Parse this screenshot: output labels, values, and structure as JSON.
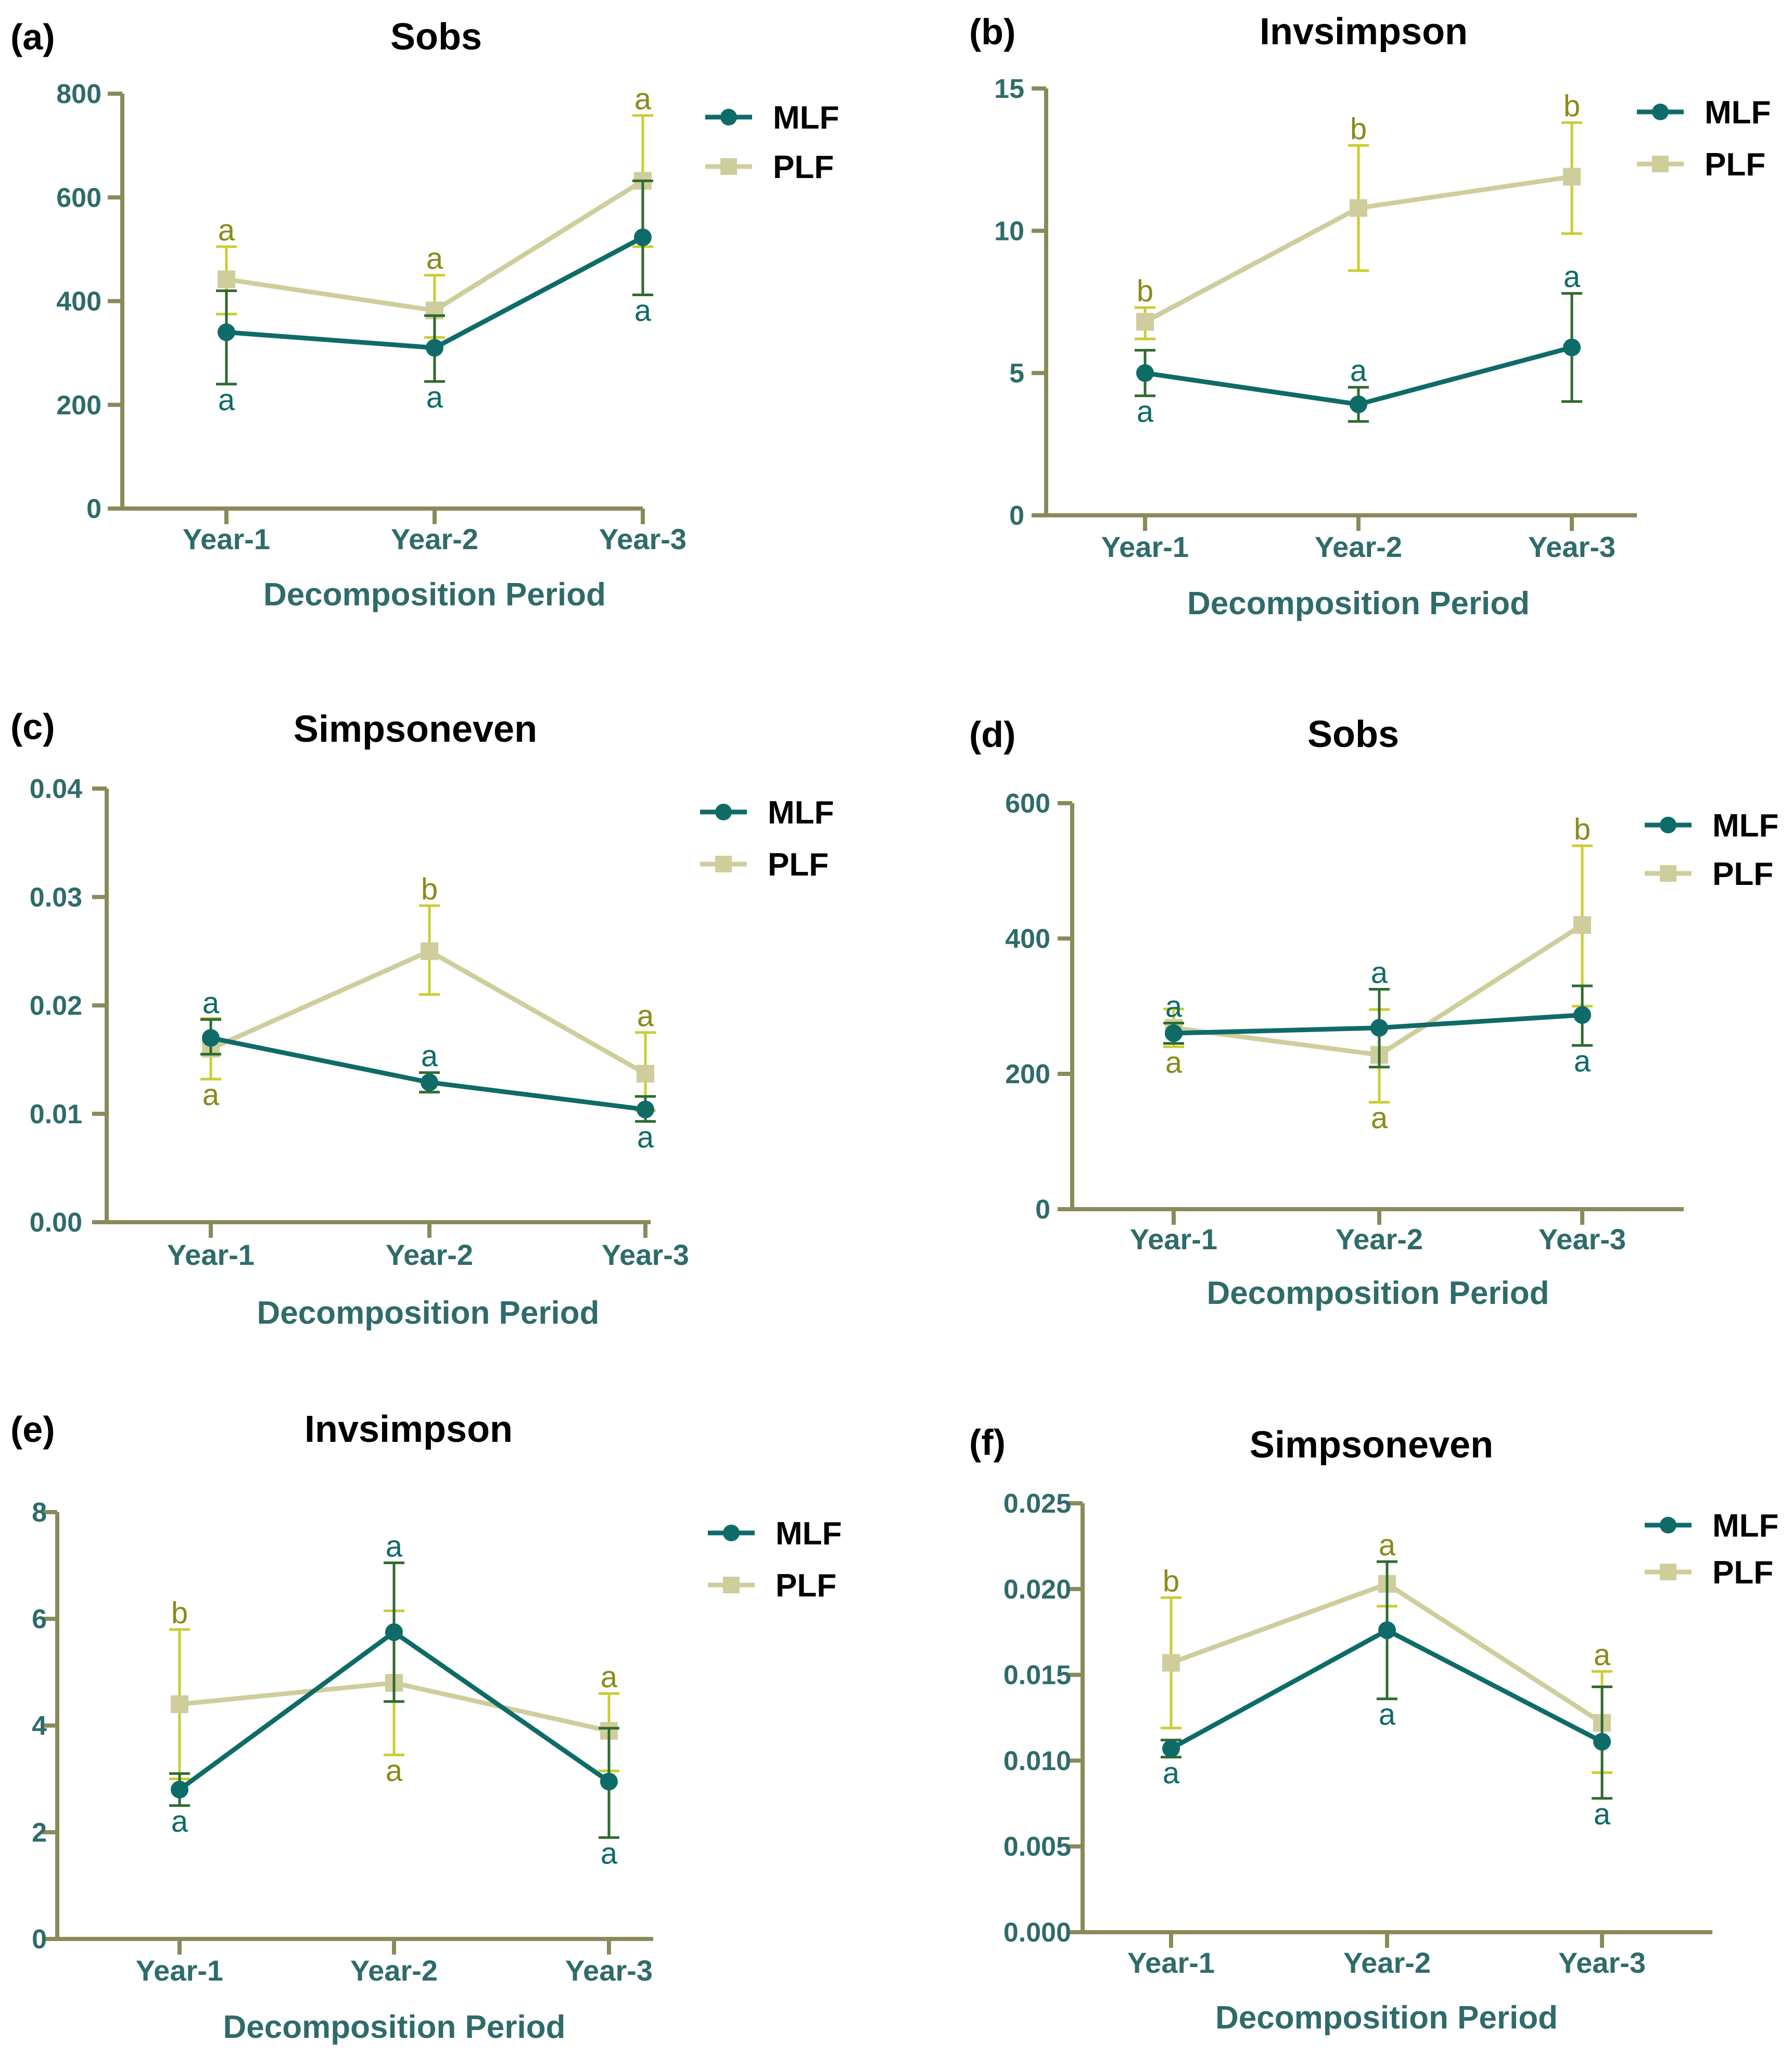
{
  "colors": {
    "axis": "#8a8a5a",
    "axis_text": "#2f6b6b",
    "mlf": "#0e6b68",
    "mlf_err": "#2f6a2f",
    "plf": "#cfcd9c",
    "plf_err": "#cccc33",
    "plf_letter": "#8a8a1a"
  },
  "chart_data": [
    {
      "panel": "(a)",
      "title": "Sobs",
      "type": "line",
      "xlabel": "Decomposition Period",
      "ylabel": "",
      "categories": [
        "Year-1",
        "Year-2",
        "Year-3"
      ],
      "ylim": [
        0,
        800
      ],
      "yticks": [
        0,
        200,
        400,
        600,
        800
      ],
      "legend": [
        "MLF",
        "PLF"
      ],
      "series": [
        {
          "name": "MLF",
          "values": [
            340,
            310,
            523
          ],
          "err_low": [
            240,
            245,
            412
          ],
          "err_high": [
            420,
            372,
            632
          ],
          "letters": [
            "a",
            "a",
            "a"
          ],
          "letter_pos": [
            "below",
            "below",
            "below"
          ]
        },
        {
          "name": "PLF",
          "values": [
            442,
            382,
            632
          ],
          "err_low": [
            375,
            330,
            505
          ],
          "err_high": [
            505,
            450,
            758
          ],
          "letters": [
            "a",
            "a",
            "a"
          ],
          "letter_pos": [
            "above",
            "above",
            "above"
          ]
        }
      ]
    },
    {
      "panel": "(b)",
      "title": "Invsimpson",
      "type": "line",
      "xlabel": "Decomposition Period",
      "ylabel": "",
      "categories": [
        "Year-1",
        "Year-2",
        "Year-3"
      ],
      "ylim": [
        0,
        15
      ],
      "yticks": [
        0,
        5,
        10,
        15
      ],
      "legend": [
        "MLF",
        "PLF"
      ],
      "series": [
        {
          "name": "MLF",
          "values": [
            5.0,
            3.9,
            5.9
          ],
          "err_low": [
            4.2,
            3.3,
            4.0
          ],
          "err_high": [
            5.8,
            4.5,
            7.8
          ],
          "letters": [
            "a",
            "a",
            "a"
          ],
          "letter_pos": [
            "below",
            "above",
            "above"
          ]
        },
        {
          "name": "PLF",
          "values": [
            6.8,
            10.8,
            11.9
          ],
          "err_low": [
            6.2,
            8.6,
            9.9
          ],
          "err_high": [
            7.3,
            13.0,
            13.8
          ],
          "letters": [
            "b",
            "b",
            "b"
          ],
          "letter_pos": [
            "above",
            "above",
            "above"
          ]
        }
      ]
    },
    {
      "panel": "(c)",
      "title": "Simpsoneven",
      "type": "line",
      "xlabel": "Decomposition Period",
      "ylabel": "",
      "categories": [
        "Year-1",
        "Year-2",
        "Year-3"
      ],
      "ylim": [
        0,
        0.04
      ],
      "yticks": [
        0,
        0.01,
        0.02,
        0.03,
        0.04
      ],
      "tick_labels": [
        "0.00",
        "0.01",
        "0.02",
        "0.03",
        "0.04"
      ],
      "legend": [
        "MLF",
        "PLF"
      ],
      "series": [
        {
          "name": "MLF",
          "values": [
            0.017,
            0.0129,
            0.0104
          ],
          "err_low": [
            0.0155,
            0.012,
            0.0093
          ],
          "err_high": [
            0.0187,
            0.0138,
            0.0116
          ],
          "letters": [
            "a",
            "a",
            "a"
          ],
          "letter_pos": [
            "above",
            "above",
            "below"
          ]
        },
        {
          "name": "PLF",
          "values": [
            0.016,
            0.025,
            0.0137
          ],
          "err_low": [
            0.0132,
            0.021,
            0.0103
          ],
          "err_high": [
            0.0188,
            0.0292,
            0.0175
          ],
          "letters": [
            "a",
            "b",
            "a"
          ],
          "letter_pos": [
            "below",
            "above",
            "above"
          ]
        }
      ]
    },
    {
      "panel": "(d)",
      "title": "Sobs",
      "type": "line",
      "xlabel": "Decomposition Period",
      "ylabel": "",
      "categories": [
        "Year-1",
        "Year-2",
        "Year-3"
      ],
      "ylim": [
        0,
        600
      ],
      "yticks": [
        0,
        200,
        400,
        600
      ],
      "legend": [
        "MLF",
        "PLF"
      ],
      "series": [
        {
          "name": "MLF",
          "values": [
            260,
            268,
            287
          ],
          "err_low": [
            245,
            210,
            242
          ],
          "err_high": [
            275,
            325,
            330
          ],
          "letters": [
            "a",
            "a",
            "a"
          ],
          "letter_pos": [
            "above",
            "above",
            "below"
          ]
        },
        {
          "name": "PLF",
          "values": [
            268,
            228,
            420
          ],
          "err_low": [
            240,
            158,
            300
          ],
          "err_high": [
            296,
            295,
            537
          ],
          "letters": [
            "a",
            "a",
            "b"
          ],
          "letter_pos": [
            "below",
            "below",
            "above"
          ]
        }
      ]
    },
    {
      "panel": "(e)",
      "title": "Invsimpson",
      "type": "line",
      "xlabel": "Decomposition Period",
      "ylabel": "",
      "categories": [
        "Year-1",
        "Year-2",
        "Year-3"
      ],
      "ylim": [
        0,
        8
      ],
      "yticks": [
        0,
        2,
        4,
        6,
        8
      ],
      "legend": [
        "MLF",
        "PLF"
      ],
      "series": [
        {
          "name": "MLF",
          "values": [
            2.8,
            5.75,
            2.95
          ],
          "err_low": [
            2.5,
            4.45,
            1.9
          ],
          "err_high": [
            3.1,
            7.05,
            3.95
          ],
          "letters": [
            "a",
            "a",
            "a"
          ],
          "letter_pos": [
            "below",
            "above",
            "below"
          ]
        },
        {
          "name": "PLF",
          "values": [
            4.4,
            4.8,
            3.9
          ],
          "err_low": [
            3.0,
            3.45,
            3.15
          ],
          "err_high": [
            5.8,
            6.15,
            4.6
          ],
          "letters": [
            "b",
            "a",
            "a"
          ],
          "letter_pos": [
            "above",
            "below",
            "above"
          ]
        }
      ]
    },
    {
      "panel": "(f)",
      "title": "Simpsoneven",
      "type": "line",
      "xlabel": "Decomposition Period",
      "ylabel": "",
      "categories": [
        "Year-1",
        "Year-2",
        "Year-3"
      ],
      "ylim": [
        0,
        0.025
      ],
      "yticks": [
        0,
        0.005,
        0.01,
        0.015,
        0.02,
        0.025
      ],
      "tick_labels": [
        "0.000",
        "0.005",
        "0.010",
        "0.015",
        "0.020",
        "0.025"
      ],
      "legend": [
        "MLF",
        "PLF"
      ],
      "series": [
        {
          "name": "MLF",
          "values": [
            0.0107,
            0.0176,
            0.0111
          ],
          "err_low": [
            0.0102,
            0.0136,
            0.0078
          ],
          "err_high": [
            0.0112,
            0.0216,
            0.0143
          ],
          "letters": [
            "a",
            "a",
            "a"
          ],
          "letter_pos": [
            "below",
            "below",
            "below"
          ]
        },
        {
          "name": "PLF",
          "values": [
            0.0157,
            0.0203,
            0.0122
          ],
          "err_low": [
            0.0119,
            0.019,
            0.0093
          ],
          "err_high": [
            0.0195,
            0.0216,
            0.0152
          ],
          "letters": [
            "b",
            "a",
            "a"
          ],
          "letter_pos": [
            "above",
            "above",
            "above"
          ]
        }
      ]
    }
  ]
}
